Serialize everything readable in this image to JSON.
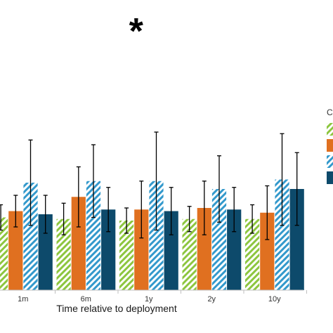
{
  "chart_data": {
    "type": "bar",
    "title": "",
    "xlabel": "Time relative to deployment",
    "ylabel": "",
    "categories": [
      "1m",
      "6m",
      "1y",
      "2y",
      "10y"
    ],
    "ylim": [
      0,
      10
    ],
    "grid": false,
    "legend_position": "right",
    "legend_title": "C",
    "series": [
      {
        "values": [
          4.6,
          4.5,
          4.4,
          4.5,
          4.5
        ],
        "error": [
          0.8,
          1.0,
          0.8,
          0.8,
          0.9
        ],
        "color": "#8dc63f",
        "pattern": "hatched"
      },
      {
        "values": [
          5.0,
          5.9,
          5.1,
          5.2,
          4.9
        ],
        "error": [
          1.0,
          1.9,
          1.8,
          1.7,
          1.7
        ],
        "color": "#e07020",
        "pattern": "solid"
      },
      {
        "values": [
          6.8,
          6.9,
          6.9,
          6.4,
          7.0
        ],
        "error": [
          2.7,
          2.3,
          3.1,
          2.1,
          2.9
        ],
        "color": "#3399cc",
        "pattern": "hatched"
      },
      {
        "values": [
          4.8,
          5.1,
          5.0,
          5.1,
          6.4
        ],
        "error": [
          1.2,
          1.4,
          1.5,
          1.4,
          2.3
        ],
        "color": "#0d4a6b",
        "pattern": "solid"
      }
    ],
    "annotations": [
      {
        "text": "*",
        "category": "1y"
      }
    ]
  }
}
